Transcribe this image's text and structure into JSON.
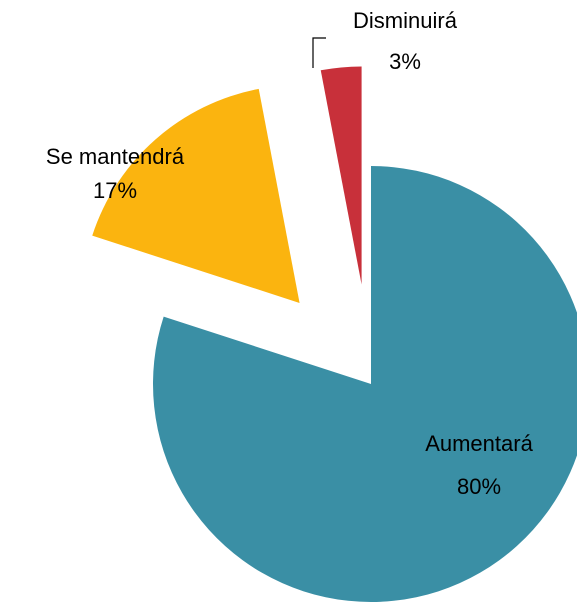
{
  "chart_data": {
    "type": "pie",
    "categories": [
      "Aumentará",
      "Se mantendrá",
      "Disminuirá"
    ],
    "values": [
      80,
      17,
      3
    ],
    "value_labels": [
      "80%",
      "17%",
      "3%"
    ],
    "colors": [
      "#3a8fa5",
      "#fbb40f",
      "#c8303a"
    ]
  }
}
